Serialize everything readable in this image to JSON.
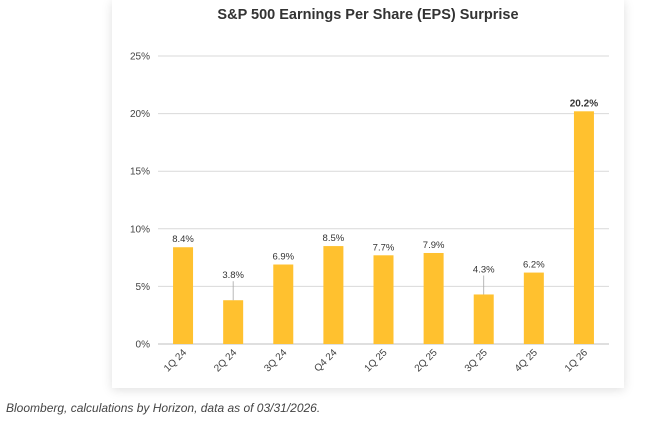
{
  "chart_data": {
    "type": "bar",
    "title": "S&P 500 Earnings Per Share (EPS) Surprise",
    "categories": [
      "1Q 24",
      "2Q 24",
      "3Q 24",
      "Q4 24",
      "1Q 25",
      "2Q 25",
      "3Q 25",
      "4Q 25",
      "1Q 26"
    ],
    "values": [
      8.4,
      3.8,
      6.9,
      8.5,
      7.7,
      7.9,
      4.3,
      6.2,
      20.2
    ],
    "data_labels": [
      "8.4%",
      "3.8%",
      "6.9%",
      "8.5%",
      "7.7%",
      "7.9%",
      "4.3%",
      "6.2%",
      "20.2%"
    ],
    "highlight_label_index": 8,
    "yticks": [
      "0%",
      "5%",
      "10%",
      "15%",
      "20%",
      "25%"
    ],
    "ylim": [
      0,
      25
    ],
    "xlabel": "",
    "ylabel": "",
    "grid": true,
    "bar_color": "#FFC12F",
    "grid_color": "#D9D9D9"
  },
  "footer": {
    "source": "Bloomberg, calculations by Horizon, data as of 03/31/2026."
  }
}
